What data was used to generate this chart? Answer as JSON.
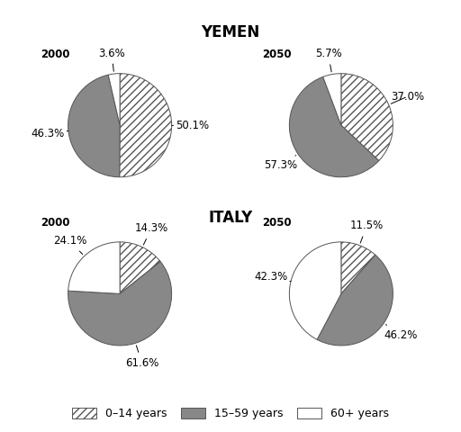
{
  "title_yemen": "YEMEN",
  "title_italy": "ITALY",
  "charts": [
    {
      "label": "2000",
      "country": "Yemen",
      "values": [
        50.1,
        46.3,
        3.6
      ],
      "pct_labels": [
        "50.1%",
        "46.3%",
        "3.6%"
      ]
    },
    {
      "label": "2050",
      "country": "Yemen",
      "values": [
        37.0,
        57.3,
        5.7
      ],
      "pct_labels": [
        "37.0%",
        "57.3%",
        "5.7%"
      ]
    },
    {
      "label": "2000",
      "country": "Italy",
      "values": [
        14.3,
        61.6,
        24.1
      ],
      "pct_labels": [
        "14.3%",
        "61.6%",
        "24.1%"
      ]
    },
    {
      "label": "2050",
      "country": "Italy",
      "values": [
        11.5,
        46.2,
        42.3
      ],
      "pct_labels": [
        "11.5%",
        "46.2%",
        "42.3%"
      ]
    }
  ],
  "categories": [
    "0–14 years",
    "15–59 years",
    "60+ years"
  ],
  "slice_facecolors": [
    "white",
    "#888888",
    "white"
  ],
  "slice_hatches": [
    "////",
    "",
    ""
  ],
  "startangle": 90,
  "title_fontsize": 12,
  "label_fontsize": 8.5,
  "year_fontsize": 8.5
}
